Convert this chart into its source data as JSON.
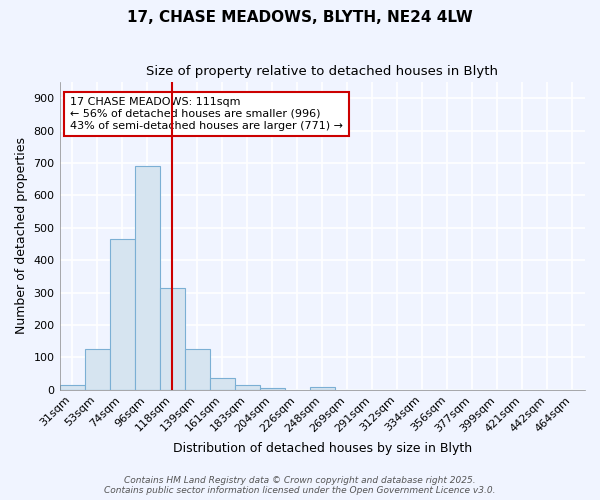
{
  "title_line1": "17, CHASE MEADOWS, BLYTH, NE24 4LW",
  "title_line2": "Size of property relative to detached houses in Blyth",
  "xlabel": "Distribution of detached houses by size in Blyth",
  "ylabel": "Number of detached properties",
  "bar_color": "#d6e4f0",
  "bar_edge_color": "#7bafd4",
  "background_color": "#f0f4ff",
  "plot_bg_color": "#f0f4ff",
  "grid_color": "#ffffff",
  "bin_labels": [
    "31sqm",
    "53sqm",
    "74sqm",
    "96sqm",
    "118sqm",
    "139sqm",
    "161sqm",
    "183sqm",
    "204sqm",
    "226sqm",
    "248sqm",
    "269sqm",
    "291sqm",
    "312sqm",
    "334sqm",
    "356sqm",
    "377sqm",
    "399sqm",
    "421sqm",
    "442sqm",
    "464sqm"
  ],
  "bar_heights": [
    15,
    125,
    465,
    690,
    315,
    125,
    35,
    15,
    5,
    0,
    10,
    0,
    0,
    0,
    0,
    0,
    0,
    0,
    0,
    0,
    0
  ],
  "red_line_index": 4,
  "red_line_color": "#cc0000",
  "annotation_text": "17 CHASE MEADOWS: 111sqm\n← 56% of detached houses are smaller (996)\n43% of semi-detached houses are larger (771) →",
  "annotation_box_color": "#ffffff",
  "annotation_box_edge_color": "#cc0000",
  "ylim": [
    0,
    950
  ],
  "yticks": [
    0,
    100,
    200,
    300,
    400,
    500,
    600,
    700,
    800,
    900
  ],
  "footer_text": "Contains HM Land Registry data © Crown copyright and database right 2025.\nContains public sector information licensed under the Open Government Licence v3.0.",
  "title_fontsize": 11,
  "subtitle_fontsize": 9.5,
  "axis_label_fontsize": 9,
  "tick_fontsize": 8,
  "annotation_fontsize": 8,
  "footer_fontsize": 6.5
}
